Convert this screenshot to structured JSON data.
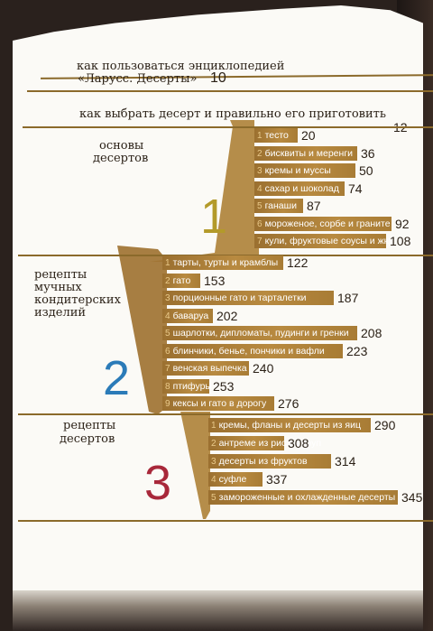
{
  "header": {
    "line1": "как пользоваться энциклопедией",
    "line2": "«Ларусс. Десерты»",
    "line2_page": "10",
    "line3": "как выбрать десерт и правильно его приготовить",
    "line3_page": "12"
  },
  "colors": {
    "gold": "#a87c35",
    "rule": "#8b6a2b",
    "num1": "#b39a2a",
    "num2": "#2b7bb8",
    "num3": "#a8283a"
  },
  "sections": [
    {
      "title_l1": "основы",
      "title_l2": "десертов",
      "number": "1",
      "items": [
        {
          "idx": "1",
          "label": "тесто",
          "page": "20"
        },
        {
          "idx": "2",
          "label": "бисквиты и меренги",
          "page": "36"
        },
        {
          "idx": "3",
          "label": "кремы и муссы",
          "page": "50"
        },
        {
          "idx": "4",
          "label": "сахар и шоколад",
          "page": "74"
        },
        {
          "idx": "5",
          "label": "ганаши",
          "page": "87"
        },
        {
          "idx": "6",
          "label": "мороженое, сорбе и граните",
          "page": "92"
        },
        {
          "idx": "7",
          "label": "кули, фруктовые соусы и жю",
          "page": "108"
        }
      ]
    },
    {
      "title_l1": "рецепты",
      "title_l2": "мучных",
      "title_l3": "кондитерских",
      "title_l4": "изделий",
      "number": "2",
      "items": [
        {
          "idx": "1",
          "label": "тарты, турты и крамблы",
          "page": "122"
        },
        {
          "idx": "2",
          "label": "гато",
          "page": "153"
        },
        {
          "idx": "3",
          "label": "порционные гато и тарталетки",
          "page": "187"
        },
        {
          "idx": "4",
          "label": "баваруа",
          "page": "202"
        },
        {
          "idx": "5",
          "label": "шарлотки, дипломаты, пудинги и гренки",
          "page": "208"
        },
        {
          "idx": "6",
          "label": "блинчики, бенье, пончики и вафли",
          "page": "223"
        },
        {
          "idx": "7",
          "label": "венская выпечка",
          "page": "240"
        },
        {
          "idx": "8",
          "label": "птифуры",
          "page": "253"
        },
        {
          "idx": "9",
          "label": "кексы и гато в дорогу",
          "page": "276"
        }
      ]
    },
    {
      "title_l1": "рецепты",
      "title_l2": "десертов",
      "number": "3",
      "items": [
        {
          "idx": "1",
          "label": "кремы, фланы и десерты из яиц",
          "page": "290"
        },
        {
          "idx": "2",
          "label": "антреме из риса и круп",
          "page": "308"
        },
        {
          "idx": "3",
          "label": "десерты из фруктов",
          "page": "314"
        },
        {
          "idx": "4",
          "label": "суфле",
          "page": "337"
        },
        {
          "idx": "5",
          "label": "замороженные и охлажденные десерты",
          "page": "345"
        }
      ]
    }
  ]
}
